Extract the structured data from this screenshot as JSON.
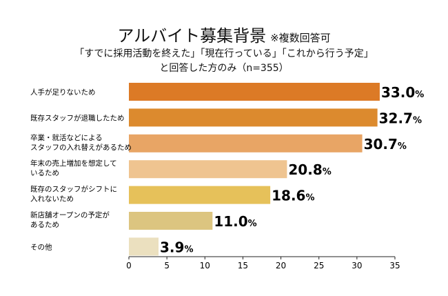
{
  "chart_data": {
    "type": "bar",
    "orientation": "horizontal",
    "title": "アルバイト募集背景",
    "title_note": "※複数回答可",
    "subtitle_line1": "「すでに採用活動を終えた」「現在行っている」「これから行う予定」",
    "subtitle_line2": "と回答した方のみ（n=355）",
    "categories": [
      [
        "人手が足りないため"
      ],
      [
        "既存スタッフが退職したため"
      ],
      [
        "卒業・就活などによる",
        "スタッフの入れ替えがあるため"
      ],
      [
        "年末の売上増加を想定して",
        "いるため"
      ],
      [
        "既存のスタッフがシフトに",
        "入れないため"
      ],
      [
        "新店舗オープンの予定が",
        "あるため"
      ],
      [
        "その他"
      ]
    ],
    "values": [
      33.0,
      32.7,
      30.7,
      20.8,
      18.6,
      11.0,
      3.9
    ],
    "value_labels": [
      "33.0",
      "32.7",
      "30.7",
      "20.8",
      "18.6",
      "11.0",
      "3.9"
    ],
    "unit": "%",
    "colors": [
      "#dc7a26",
      "#dc8a2e",
      "#e8a565",
      "#efc490",
      "#e6c15a",
      "#dcc580",
      "#ebe0bf"
    ],
    "xlim": [
      0,
      35
    ],
    "xticks": [
      "0",
      "5",
      "10",
      "15",
      "20",
      "25",
      "30",
      "35"
    ],
    "xlabel": "",
    "ylabel": "",
    "grid": false
  }
}
